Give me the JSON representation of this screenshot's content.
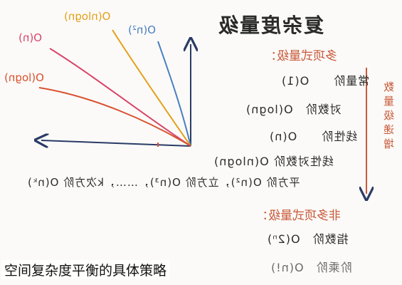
{
  "title": "复杂度量级",
  "section_polynomial": "多项式量级：",
  "rows": [
    {
      "label": "常量阶",
      "value": "O(1)"
    },
    {
      "label": "对数阶",
      "value": "O(logn)"
    },
    {
      "label": "线性阶",
      "value": "O(n)"
    },
    {
      "label": "线性对数阶",
      "value": "O(nlogn)"
    },
    {
      "label": "平方阶 O(n²)，立方阶 O(n³)，……，k次方阶 O(nᵏ)",
      "value": ""
    }
  ],
  "section_nonpolynomial": "非多项式量级：",
  "nonpoly_rows": [
    {
      "label": "指数阶",
      "value": "O(2ⁿ)"
    },
    {
      "label": "阶乘阶",
      "value": "O(n!)"
    }
  ],
  "side_note": "数量级递增",
  "curves": [
    {
      "label": "O(n²)",
      "color": "#4a7fc0"
    },
    {
      "label": "O(nlogn)",
      "color": "#e3a019"
    },
    {
      "label": "O(n)",
      "color": "#d9456a"
    },
    {
      "label": "O(logn)",
      "color": "#d9502e"
    }
  ],
  "caption": "空间复杂度平衡的具体策略"
}
